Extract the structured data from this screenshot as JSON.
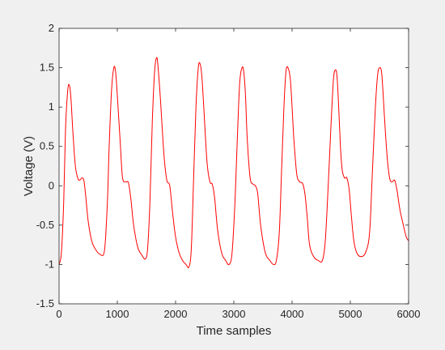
{
  "chart_data": {
    "type": "line",
    "title": "",
    "xlabel": "Time samples",
    "ylabel": "Voltage (V)",
    "xlim": [
      0,
      6000
    ],
    "ylim": [
      -1.5,
      2
    ],
    "grid": false,
    "legend": "none",
    "x_ticks": [
      0,
      1000,
      2000,
      3000,
      4000,
      5000,
      6000
    ],
    "x_tick_labels": [
      "0",
      "1000",
      "2000",
      "3000",
      "4000",
      "5000",
      "6000"
    ],
    "y_ticks": [
      -1.5,
      -1,
      -0.5,
      0,
      0.5,
      1,
      1.5,
      2
    ],
    "y_tick_labels": [
      "-1.5",
      "-1",
      "-0.5",
      "0",
      "0.5",
      "1",
      "1.5",
      "2"
    ],
    "series": [
      {
        "color": "#ff0000",
        "x": [
          0,
          40,
          80,
          110,
          150,
          180,
          205,
          240,
          280,
          320,
          350,
          400,
          430,
          460,
          500,
          560,
          620,
          700,
          780,
          830,
          860,
          900,
          940,
          970,
          1000,
          1050,
          1090,
          1150,
          1190,
          1230,
          1280,
          1350,
          1420,
          1480,
          1520,
          1560,
          1600,
          1640,
          1675,
          1700,
          1740,
          1800,
          1850,
          1900,
          1950,
          2000,
          2060,
          2120,
          2180,
          2230,
          2270,
          2310,
          2350,
          2390,
          2420,
          2450,
          2480,
          2540,
          2590,
          2630,
          2670,
          2720,
          2790,
          2860,
          2920,
          2970,
          3020,
          3060,
          3100,
          3140,
          3170,
          3200,
          3230,
          3280,
          3330,
          3370,
          3410,
          3460,
          3540,
          3620,
          3680,
          3730,
          3780,
          3820,
          3860,
          3895,
          3930,
          3970,
          4000,
          4030,
          4080,
          4130,
          4180,
          4220,
          4260,
          4300,
          4370,
          4450,
          4520,
          4570,
          4620,
          4670,
          4710,
          4740,
          4770,
          4800,
          4830,
          4860,
          4900,
          4940,
          4980,
          5020,
          5060,
          5110,
          5180,
          5260,
          5330,
          5380,
          5430,
          5470,
          5505,
          5535,
          5560,
          5600,
          5640,
          5680,
          5720,
          5760,
          5800,
          5850,
          5910,
          5960,
          6000
        ],
        "y": [
          -1.0,
          -0.85,
          -0.2,
          0.7,
          1.22,
          1.27,
          1.1,
          0.65,
          0.25,
          0.1,
          0.07,
          0.1,
          0.05,
          -0.15,
          -0.45,
          -0.7,
          -0.8,
          -0.87,
          -0.82,
          -0.2,
          0.5,
          1.2,
          1.5,
          1.45,
          1.15,
          0.55,
          0.1,
          0.05,
          0.04,
          -0.15,
          -0.5,
          -0.78,
          -0.88,
          -0.93,
          -0.8,
          -0.2,
          0.8,
          1.45,
          1.63,
          1.5,
          1.1,
          0.4,
          0.07,
          0.0,
          -0.35,
          -0.65,
          -0.85,
          -0.95,
          -1.0,
          -1.03,
          -0.8,
          0.1,
          1.0,
          1.5,
          1.55,
          1.4,
          1.05,
          0.3,
          0.05,
          0.02,
          -0.15,
          -0.55,
          -0.85,
          -0.95,
          -1.0,
          -0.85,
          -0.2,
          0.6,
          1.3,
          1.5,
          1.45,
          1.15,
          0.6,
          0.1,
          0.02,
          0.0,
          -0.1,
          -0.5,
          -0.85,
          -0.95,
          -1.0,
          -0.95,
          -0.6,
          0.2,
          1.0,
          1.45,
          1.5,
          1.35,
          1.0,
          0.6,
          0.15,
          0.05,
          0.03,
          -0.1,
          -0.4,
          -0.75,
          -0.9,
          -0.95,
          -0.95,
          -0.7,
          0.0,
          0.8,
          1.35,
          1.47,
          1.4,
          1.0,
          0.5,
          0.2,
          0.1,
          0.1,
          -0.05,
          -0.4,
          -0.7,
          -0.85,
          -0.9,
          -0.85,
          -0.6,
          0.2,
          1.0,
          1.42,
          1.5,
          1.45,
          1.2,
          0.7,
          0.3,
          0.08,
          0.05,
          0.07,
          -0.05,
          -0.3,
          -0.5,
          -0.65,
          -0.7
        ]
      }
    ]
  }
}
